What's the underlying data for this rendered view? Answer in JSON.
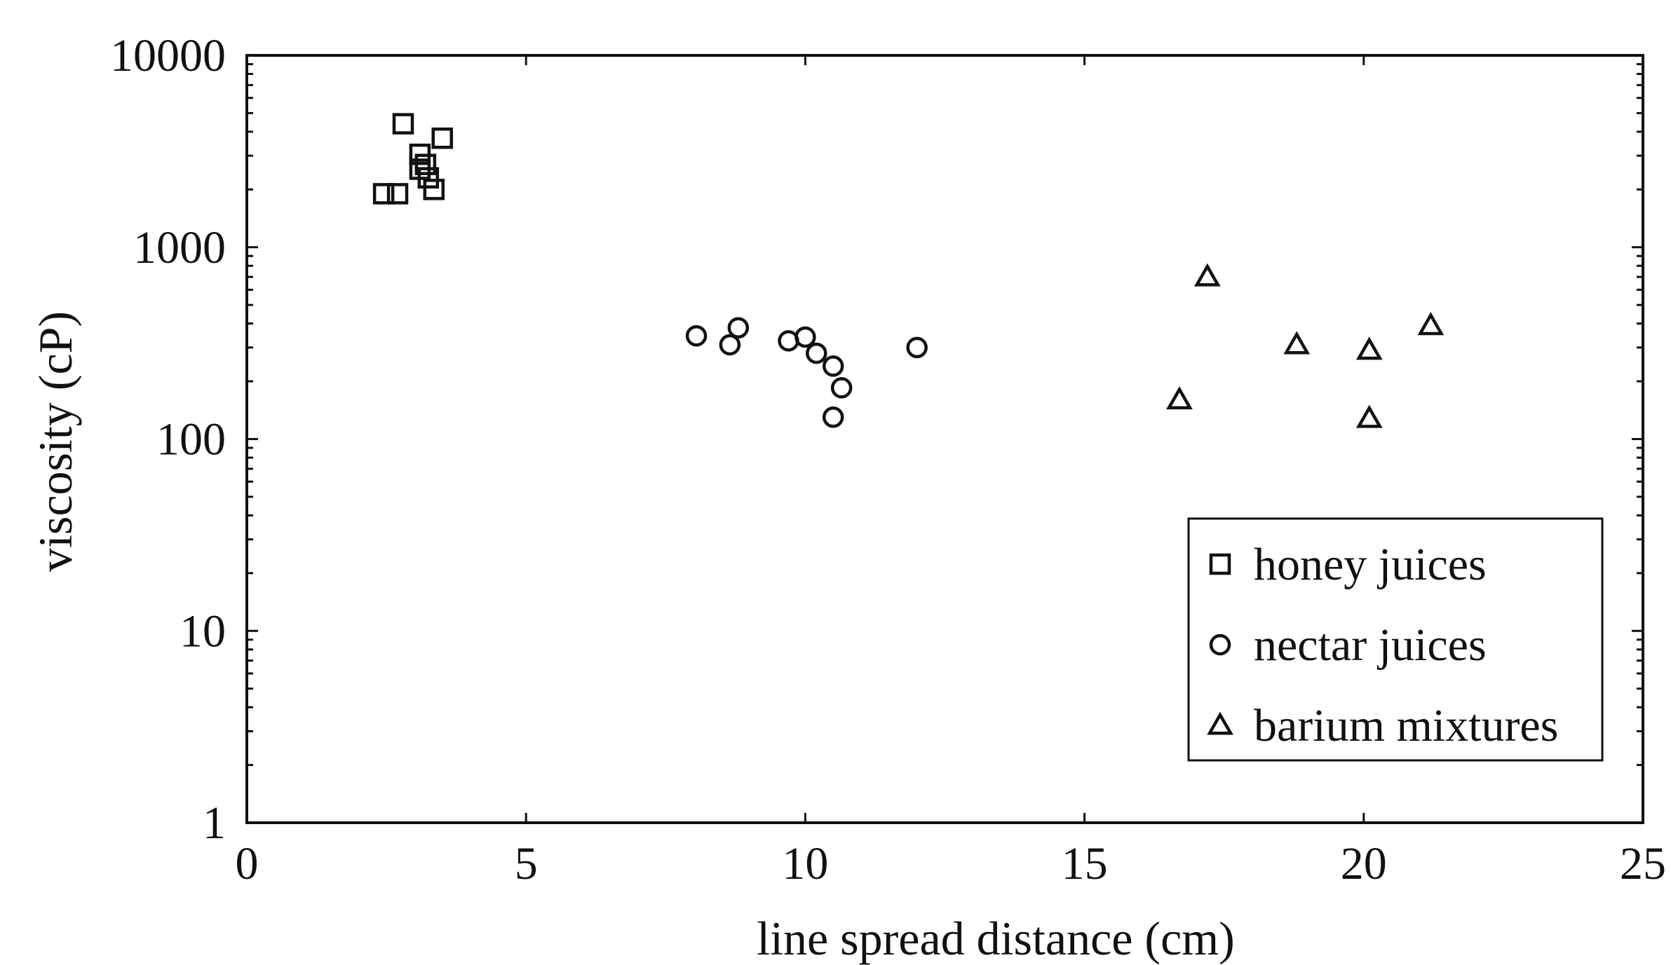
{
  "chart_data": {
    "type": "scatter",
    "xlabel": "line spread distance (cm)",
    "ylabel": "viscosity (cP)",
    "xlim": [
      0,
      25
    ],
    "ylim": [
      1,
      10000
    ],
    "yscale": "log",
    "xticks": [
      "0",
      "5",
      "10",
      "15",
      "20",
      "25"
    ],
    "yticks": [
      "1",
      "10",
      "100",
      "1000",
      "10000"
    ],
    "grid": false,
    "legend_position": "bottom-right",
    "series": [
      {
        "name": "honey juices",
        "marker": "square",
        "points": [
          {
            "x": 2.8,
            "y": 4400
          },
          {
            "x": 3.5,
            "y": 3700
          },
          {
            "x": 3.1,
            "y": 3050
          },
          {
            "x": 3.2,
            "y": 2700
          },
          {
            "x": 3.1,
            "y": 2550
          },
          {
            "x": 3.25,
            "y": 2300
          },
          {
            "x": 3.35,
            "y": 2000
          },
          {
            "x": 2.45,
            "y": 1900
          },
          {
            "x": 2.7,
            "y": 1900
          }
        ]
      },
      {
        "name": "nectar juices",
        "marker": "circle",
        "points": [
          {
            "x": 8.05,
            "y": 345
          },
          {
            "x": 8.65,
            "y": 310
          },
          {
            "x": 8.8,
            "y": 380
          },
          {
            "x": 9.7,
            "y": 325
          },
          {
            "x": 10.0,
            "y": 340
          },
          {
            "x": 10.2,
            "y": 280
          },
          {
            "x": 10.5,
            "y": 240
          },
          {
            "x": 10.65,
            "y": 185
          },
          {
            "x": 10.5,
            "y": 130
          },
          {
            "x": 12.0,
            "y": 300
          }
        ]
      },
      {
        "name": "barium mixtures",
        "marker": "triangle",
        "points": [
          {
            "x": 17.2,
            "y": 700
          },
          {
            "x": 16.7,
            "y": 160
          },
          {
            "x": 18.8,
            "y": 310
          },
          {
            "x": 20.1,
            "y": 290
          },
          {
            "x": 20.1,
            "y": 128
          },
          {
            "x": 21.2,
            "y": 390
          }
        ]
      }
    ]
  }
}
